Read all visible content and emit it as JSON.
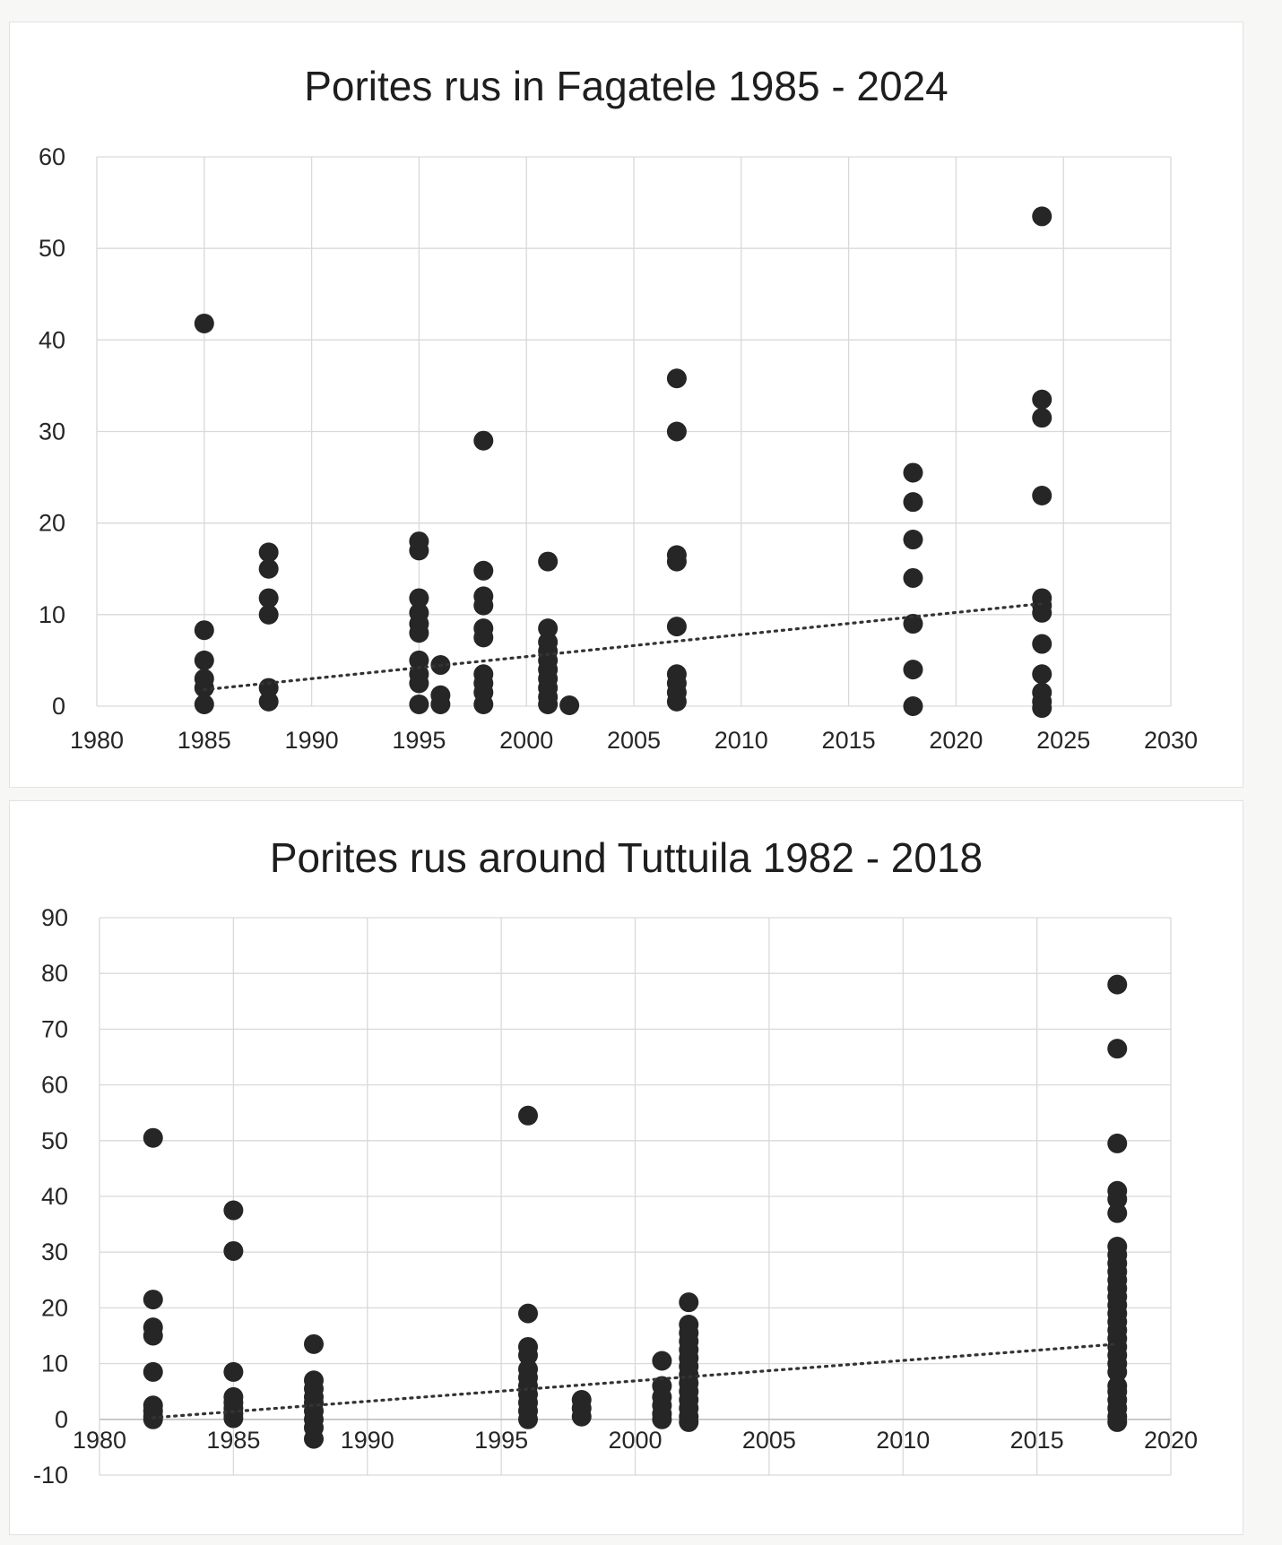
{
  "chart_data": [
    {
      "type": "scatter",
      "title": "Porites rus in Fagatele 1985 - 2024",
      "xlabel": "",
      "ylabel": "",
      "xlim": [
        1980,
        2030
      ],
      "ylim": [
        0,
        60
      ],
      "xticks": [
        1980,
        1985,
        1990,
        1995,
        2000,
        2005,
        2010,
        2015,
        2020,
        2025,
        2030
      ],
      "yticks": [
        0,
        10,
        20,
        30,
        40,
        50,
        60
      ],
      "grid": true,
      "marker_color": "#262626",
      "trendline": {
        "style": "dotted",
        "x": [
          1985,
          2024
        ],
        "y": [
          1.8,
          11.2
        ]
      },
      "points": [
        [
          1985,
          41.8
        ],
        [
          1985,
          8.3
        ],
        [
          1985,
          5.0
        ],
        [
          1985,
          3.0
        ],
        [
          1985,
          2.0
        ],
        [
          1985,
          0.2
        ],
        [
          1988,
          16.8
        ],
        [
          1988,
          15.0
        ],
        [
          1988,
          11.8
        ],
        [
          1988,
          10.0
        ],
        [
          1988,
          2.0
        ],
        [
          1988,
          0.5
        ],
        [
          1995,
          18.0
        ],
        [
          1995,
          17.0
        ],
        [
          1995,
          11.8
        ],
        [
          1995,
          10.2
        ],
        [
          1995,
          9.0
        ],
        [
          1995,
          8.0
        ],
        [
          1995,
          5.0
        ],
        [
          1995,
          3.5
        ],
        [
          1995,
          2.5
        ],
        [
          1995,
          0.2
        ],
        [
          1996,
          4.5
        ],
        [
          1996,
          1.2
        ],
        [
          1996,
          0.2
        ],
        [
          1998,
          29.0
        ],
        [
          1998,
          14.8
        ],
        [
          1998,
          12.0
        ],
        [
          1998,
          11.0
        ],
        [
          1998,
          8.5
        ],
        [
          1998,
          7.5
        ],
        [
          1998,
          3.5
        ],
        [
          1998,
          2.5
        ],
        [
          1998,
          1.5
        ],
        [
          1998,
          0.2
        ],
        [
          2001,
          15.8
        ],
        [
          2001,
          8.5
        ],
        [
          2001,
          7.0
        ],
        [
          2001,
          6.0
        ],
        [
          2001,
          5.0
        ],
        [
          2001,
          4.0
        ],
        [
          2001,
          3.0
        ],
        [
          2001,
          2.0
        ],
        [
          2001,
          1.0
        ],
        [
          2001,
          0.2
        ],
        [
          2002,
          0.1
        ],
        [
          2007,
          35.8
        ],
        [
          2007,
          30.0
        ],
        [
          2007,
          16.5
        ],
        [
          2007,
          15.8
        ],
        [
          2007,
          8.7
        ],
        [
          2007,
          3.5
        ],
        [
          2007,
          2.5
        ],
        [
          2007,
          1.5
        ],
        [
          2007,
          0.5
        ],
        [
          2018,
          25.5
        ],
        [
          2018,
          22.3
        ],
        [
          2018,
          18.2
        ],
        [
          2018,
          14.0
        ],
        [
          2018,
          9.0
        ],
        [
          2018,
          4.0
        ],
        [
          2018,
          0.0
        ],
        [
          2024,
          53.5
        ],
        [
          2024,
          33.5
        ],
        [
          2024,
          31.5
        ],
        [
          2024,
          23.0
        ],
        [
          2024,
          11.8
        ],
        [
          2024,
          11.0
        ],
        [
          2024,
          10.2
        ],
        [
          2024,
          6.8
        ],
        [
          2024,
          3.5
        ],
        [
          2024,
          1.5
        ],
        [
          2024,
          0.5
        ],
        [
          2024,
          -0.2
        ]
      ]
    },
    {
      "type": "scatter",
      "title": "Porites rus around Tuttuila 1982 - 2018",
      "xlabel": "",
      "ylabel": "",
      "xlim": [
        1980,
        2020
      ],
      "ylim": [
        -10,
        90
      ],
      "xticks": [
        1980,
        1985,
        1990,
        1995,
        2000,
        2005,
        2010,
        2015,
        2020
      ],
      "yticks": [
        -10,
        0,
        10,
        20,
        30,
        40,
        50,
        60,
        70,
        80,
        90
      ],
      "grid": true,
      "marker_color": "#262626",
      "trendline": {
        "style": "dotted",
        "x": [
          1982,
          2018
        ],
        "y": [
          0.3,
          13.5
        ]
      },
      "points": [
        [
          1982,
          50.5
        ],
        [
          1982,
          21.5
        ],
        [
          1982,
          16.5
        ],
        [
          1982,
          15.0
        ],
        [
          1982,
          8.5
        ],
        [
          1982,
          2.5
        ],
        [
          1982,
          1.5
        ],
        [
          1982,
          0.5
        ],
        [
          1982,
          0.0
        ],
        [
          1985,
          37.5
        ],
        [
          1985,
          30.2
        ],
        [
          1985,
          8.5
        ],
        [
          1985,
          4.0
        ],
        [
          1985,
          3.0
        ],
        [
          1985,
          2.0
        ],
        [
          1985,
          1.0
        ],
        [
          1985,
          0.2
        ],
        [
          1988,
          13.5
        ],
        [
          1988,
          7.0
        ],
        [
          1988,
          5.5
        ],
        [
          1988,
          4.0
        ],
        [
          1988,
          3.0
        ],
        [
          1988,
          1.5
        ],
        [
          1988,
          0.0
        ],
        [
          1988,
          -1.5
        ],
        [
          1988,
          -3.5
        ],
        [
          1996,
          54.5
        ],
        [
          1996,
          19.0
        ],
        [
          1996,
          13.0
        ],
        [
          1996,
          11.5
        ],
        [
          1996,
          9.0
        ],
        [
          1996,
          7.5
        ],
        [
          1996,
          6.0
        ],
        [
          1996,
          4.5
        ],
        [
          1996,
          3.0
        ],
        [
          1996,
          1.5
        ],
        [
          1996,
          0.0
        ],
        [
          1998,
          3.5
        ],
        [
          1998,
          2.0
        ],
        [
          1998,
          0.5
        ],
        [
          2001,
          10.5
        ],
        [
          2001,
          6.0
        ],
        [
          2001,
          4.0
        ],
        [
          2001,
          2.5
        ],
        [
          2001,
          1.0
        ],
        [
          2001,
          0.0
        ],
        [
          2002,
          21.0
        ],
        [
          2002,
          17.0
        ],
        [
          2002,
          15.5
        ],
        [
          2002,
          14.0
        ],
        [
          2002,
          12.5
        ],
        [
          2002,
          11.0
        ],
        [
          2002,
          9.5
        ],
        [
          2002,
          8.0
        ],
        [
          2002,
          6.5
        ],
        [
          2002,
          5.0
        ],
        [
          2002,
          3.5
        ],
        [
          2002,
          2.0
        ],
        [
          2002,
          0.5
        ],
        [
          2002,
          -0.5
        ],
        [
          2018,
          78.0
        ],
        [
          2018,
          66.5
        ],
        [
          2018,
          49.5
        ],
        [
          2018,
          41.0
        ],
        [
          2018,
          39.5
        ],
        [
          2018,
          37.0
        ],
        [
          2018,
          31.0
        ],
        [
          2018,
          29.5
        ],
        [
          2018,
          28.0
        ],
        [
          2018,
          26.5
        ],
        [
          2018,
          25.0
        ],
        [
          2018,
          23.5
        ],
        [
          2018,
          22.0
        ],
        [
          2018,
          20.5
        ],
        [
          2018,
          19.0
        ],
        [
          2018,
          17.5
        ],
        [
          2018,
          16.0
        ],
        [
          2018,
          14.5
        ],
        [
          2018,
          13.0
        ],
        [
          2018,
          11.5
        ],
        [
          2018,
          10.0
        ],
        [
          2018,
          8.5
        ],
        [
          2018,
          6.0
        ],
        [
          2018,
          5.0
        ],
        [
          2018,
          3.5
        ],
        [
          2018,
          2.0
        ],
        [
          2018,
          0.5
        ],
        [
          2018,
          -0.5
        ]
      ]
    }
  ]
}
